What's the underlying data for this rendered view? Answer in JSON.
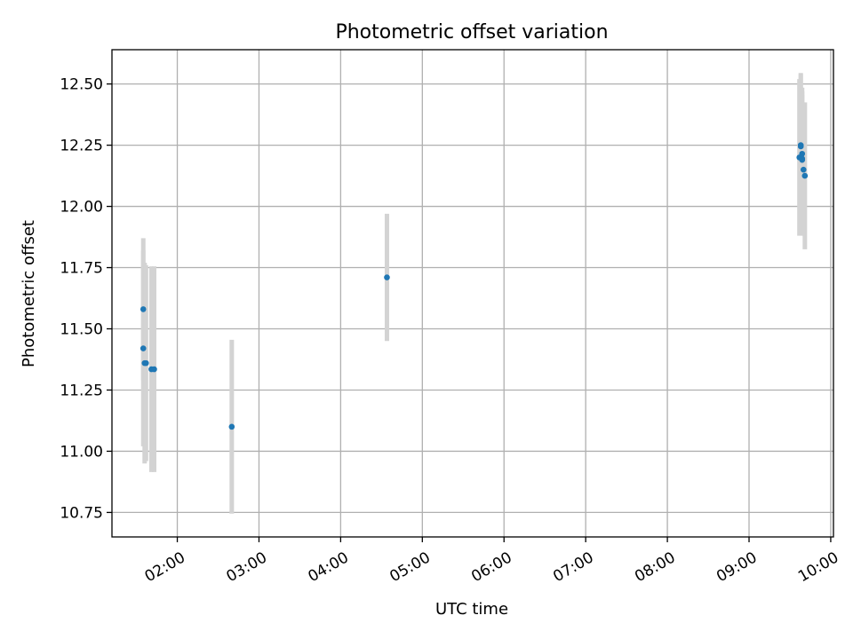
{
  "chart_data": {
    "type": "scatter",
    "title": "Photometric offset variation",
    "xlabel": "UTC time",
    "ylabel": "Photometric offset",
    "grid": true,
    "legend": "none",
    "xlim": [
      "01:12",
      "10:02"
    ],
    "ylim": [
      10.65,
      12.64
    ],
    "xticks": [
      "02:00",
      "03:00",
      "04:00",
      "05:00",
      "06:00",
      "07:00",
      "08:00",
      "09:00",
      "10:00"
    ],
    "yticks": [
      "10.75",
      "11.00",
      "11.25",
      "11.50",
      "11.75",
      "12.00",
      "12.25",
      "12.50"
    ],
    "point_color": "#1f77b4",
    "errorbar_color": "#d3d3d3",
    "points": [
      {
        "t": "01:35",
        "y": 11.58,
        "err": 0.29
      },
      {
        "t": "01:35",
        "y": 11.42,
        "err": 0.4
      },
      {
        "t": "01:36",
        "y": 11.36,
        "err": 0.41
      },
      {
        "t": "01:37",
        "y": 11.36,
        "err": 0.4
      },
      {
        "t": "01:41",
        "y": 11.335,
        "err": 0.42
      },
      {
        "t": "01:43",
        "y": 11.335,
        "err": 0.42
      },
      {
        "t": "02:40",
        "y": 11.1,
        "err": 0.355
      },
      {
        "t": "04:34",
        "y": 11.71,
        "err": 0.26
      },
      {
        "t": "09:37",
        "y": 12.2,
        "err": 0.32
      },
      {
        "t": "09:38",
        "y": 12.245,
        "err": 0.3
      },
      {
        "t": "09:38",
        "y": 12.25,
        "err": 0.29
      },
      {
        "t": "09:39",
        "y": 12.215,
        "err": 0.27
      },
      {
        "t": "09:39",
        "y": 12.19,
        "err": 0.28
      },
      {
        "t": "09:39",
        "y": 12.195,
        "err": 0.26
      },
      {
        "t": "09:40",
        "y": 12.15,
        "err": 0.27
      },
      {
        "t": "09:41",
        "y": 12.125,
        "err": 0.3
      }
    ]
  }
}
